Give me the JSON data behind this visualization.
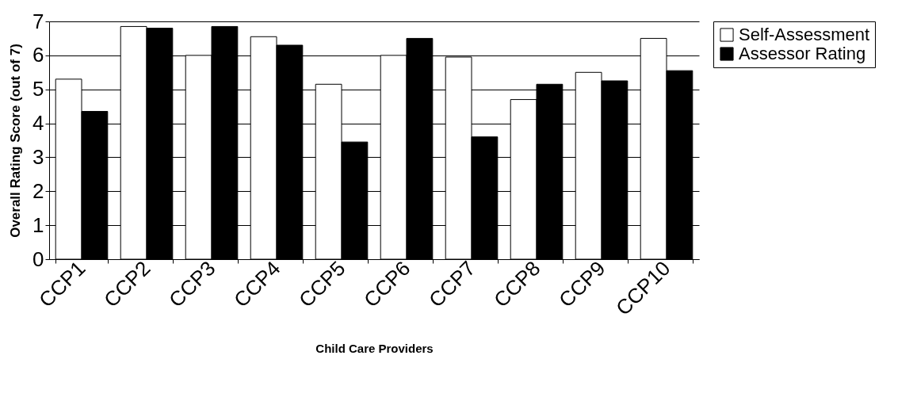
{
  "chart_data": {
    "type": "bar",
    "xlabel": "Child Care Providers",
    "ylabel": "Overall Rating Score (out of 7)",
    "categories": [
      "CCP1",
      "CCP2",
      "CCP3",
      "CCP4",
      "CCP5",
      "CCP6",
      "CCP7",
      "CCP8",
      "CCP9",
      "CCP10"
    ],
    "series": [
      {
        "name": "Self-Assessment",
        "color": "#ffffff",
        "values": [
          5.3,
          6.85,
          6.0,
          6.55,
          5.15,
          6.0,
          5.95,
          4.7,
          5.5,
          6.5
        ]
      },
      {
        "name": "Assessor Rating",
        "color": "#000000",
        "values": [
          4.35,
          6.8,
          6.85,
          6.3,
          3.45,
          6.5,
          3.6,
          5.15,
          5.25,
          5.55
        ]
      }
    ],
    "ylim": [
      0,
      7
    ],
    "yticks": [
      0,
      1,
      2,
      3,
      4,
      5,
      6,
      7
    ],
    "grid": "y",
    "legend": "right"
  }
}
